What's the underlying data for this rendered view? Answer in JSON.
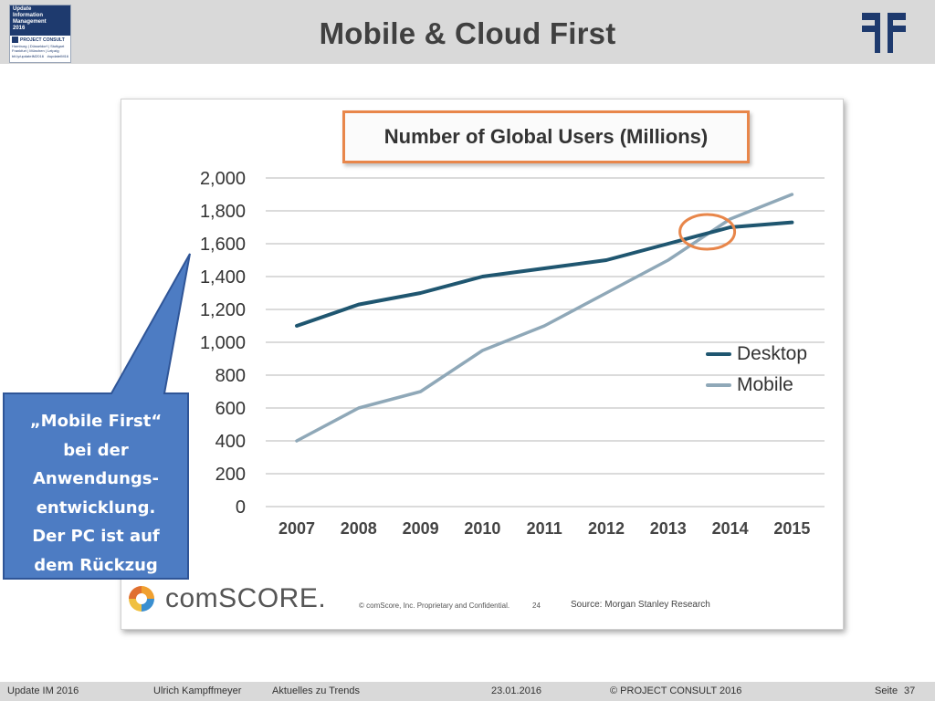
{
  "header": {
    "title": "Mobile & Cloud First",
    "badge": {
      "line1": "Update",
      "line2": "Information",
      "line3": "Management",
      "line4": "2016",
      "brand": "PROJECT CONSULT",
      "cities1": "Hamburg | Düsseldorf | Stuttgart",
      "cities2": "Frankfurt | München | Leipzig",
      "link": "bit.ly/updateIM2016",
      "hashtag": "#updateIM16"
    }
  },
  "chart_data": {
    "type": "line",
    "title": "Number of Global Users (Millions)",
    "x": [
      "2007",
      "2008",
      "2009",
      "2010",
      "2011",
      "2012",
      "2013",
      "2014",
      "2015"
    ],
    "yticks": [
      "0",
      "200",
      "400",
      "600",
      "800",
      "1,000",
      "1,200",
      "1,400",
      "1,600",
      "1,800",
      "2,000"
    ],
    "ylim": [
      0,
      2000
    ],
    "grid": true,
    "legend_position": "right",
    "series": [
      {
        "name": "Desktop",
        "color": "#1f5670",
        "values": [
          1100,
          1230,
          1300,
          1400,
          1450,
          1500,
          1600,
          1700,
          1730
        ]
      },
      {
        "name": "Mobile",
        "color": "#8fa8b8",
        "values": [
          400,
          600,
          700,
          950,
          1100,
          1300,
          1500,
          1750,
          1900
        ]
      }
    ],
    "highlight": {
      "x": "2014",
      "y": 1700,
      "color": "#e8864a"
    }
  },
  "chart_footer": {
    "brand": "comSCORE.",
    "fineprint": "© comScore, Inc. Proprietary and Confidential.",
    "page": "24",
    "source": "Source: Morgan Stanley Research"
  },
  "callout": {
    "lines": [
      "„Mobile First“",
      "bei der",
      "Anwendungs-",
      "entwicklung.",
      "Der PC ist auf",
      "dem Rückzug"
    ],
    "fill": "#4d7cc3",
    "stroke": "#2f5597"
  },
  "footer": {
    "event": "Update IM 2016",
    "author": "Ulrich Kampffmeyer",
    "topic": "Aktuelles zu Trends",
    "date": "23.01.2016",
    "copyright": "© PROJECT CONSULT 2016",
    "page_label": "Seite",
    "page_number": "37"
  }
}
